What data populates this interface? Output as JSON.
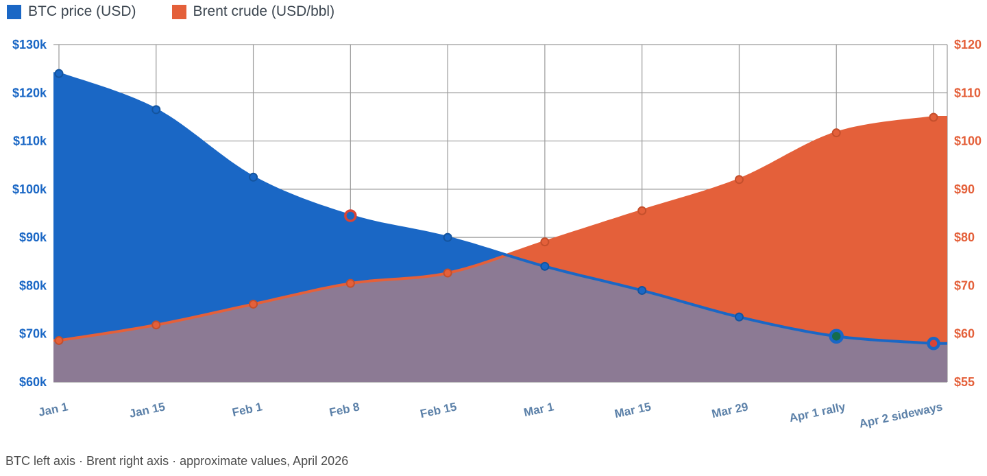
{
  "legend": [
    {
      "label": "BTC price (USD)",
      "color": "#1a67c5"
    },
    {
      "label": "Brent crude (USD/bbl)",
      "color": "#e4603a"
    }
  ],
  "footer": "BTC left axis · Brent right axis · approximate values, April 2026",
  "chart_data": {
    "type": "area",
    "title": "",
    "categories": [
      "Jan 1",
      "Jan 15",
      "Feb 1",
      "Feb 8",
      "Feb 15",
      "Mar 1",
      "Mar 15",
      "Mar 29",
      "Apr 1 rally",
      "Apr 2 sideways"
    ],
    "series": [
      {
        "name": "BTC price (USD)",
        "axis": "left",
        "color": "#1a67c5",
        "dot_stroke": "#14549e",
        "values": [
          124000,
          116500,
          102500,
          94500,
          90000,
          84000,
          79000,
          73500,
          69500,
          68000
        ]
      },
      {
        "name": "Brent crude (USD/bbl)",
        "axis": "right",
        "color": "#e4603a",
        "dot_stroke": "#c44f2c",
        "values": [
          63,
          66,
          70,
          74,
          76,
          82,
          88,
          94,
          103,
          106
        ]
      }
    ],
    "left_axis": {
      "labels": [
        "$130k",
        "$120k",
        "$110k",
        "$100k",
        "$90k",
        "$80k",
        "$70k",
        "$60k"
      ],
      "min": 60000,
      "max": 130000,
      "color": "#1a67c5"
    },
    "right_axis": {
      "labels": [
        "$120",
        "$110",
        "$100",
        "$90",
        "$80",
        "$70",
        "$60",
        "$55"
      ],
      "min": 55,
      "max": 120,
      "color": "#e4603a"
    },
    "x_label_color": "#5b80a8",
    "grid": true,
    "grid_color": "#9a9a9a",
    "overlap_color": "#8c7a94",
    "legend_position": "top-left",
    "annotations": [
      {
        "series": 0,
        "index": 3,
        "fill": "#1a67c5",
        "stroke": "#d94436",
        "radius": 7.5,
        "stroke_width": 3.5
      },
      {
        "series": 0,
        "index": 8,
        "fill": "#156c4e",
        "stroke": "#1a67c5",
        "radius": 8.5,
        "stroke_width": 4.5
      },
      {
        "series": 0,
        "index": 9,
        "fill": "#d94436",
        "stroke": "#1a67c5",
        "radius": 7.5,
        "stroke_width": 4.5
      }
    ]
  }
}
